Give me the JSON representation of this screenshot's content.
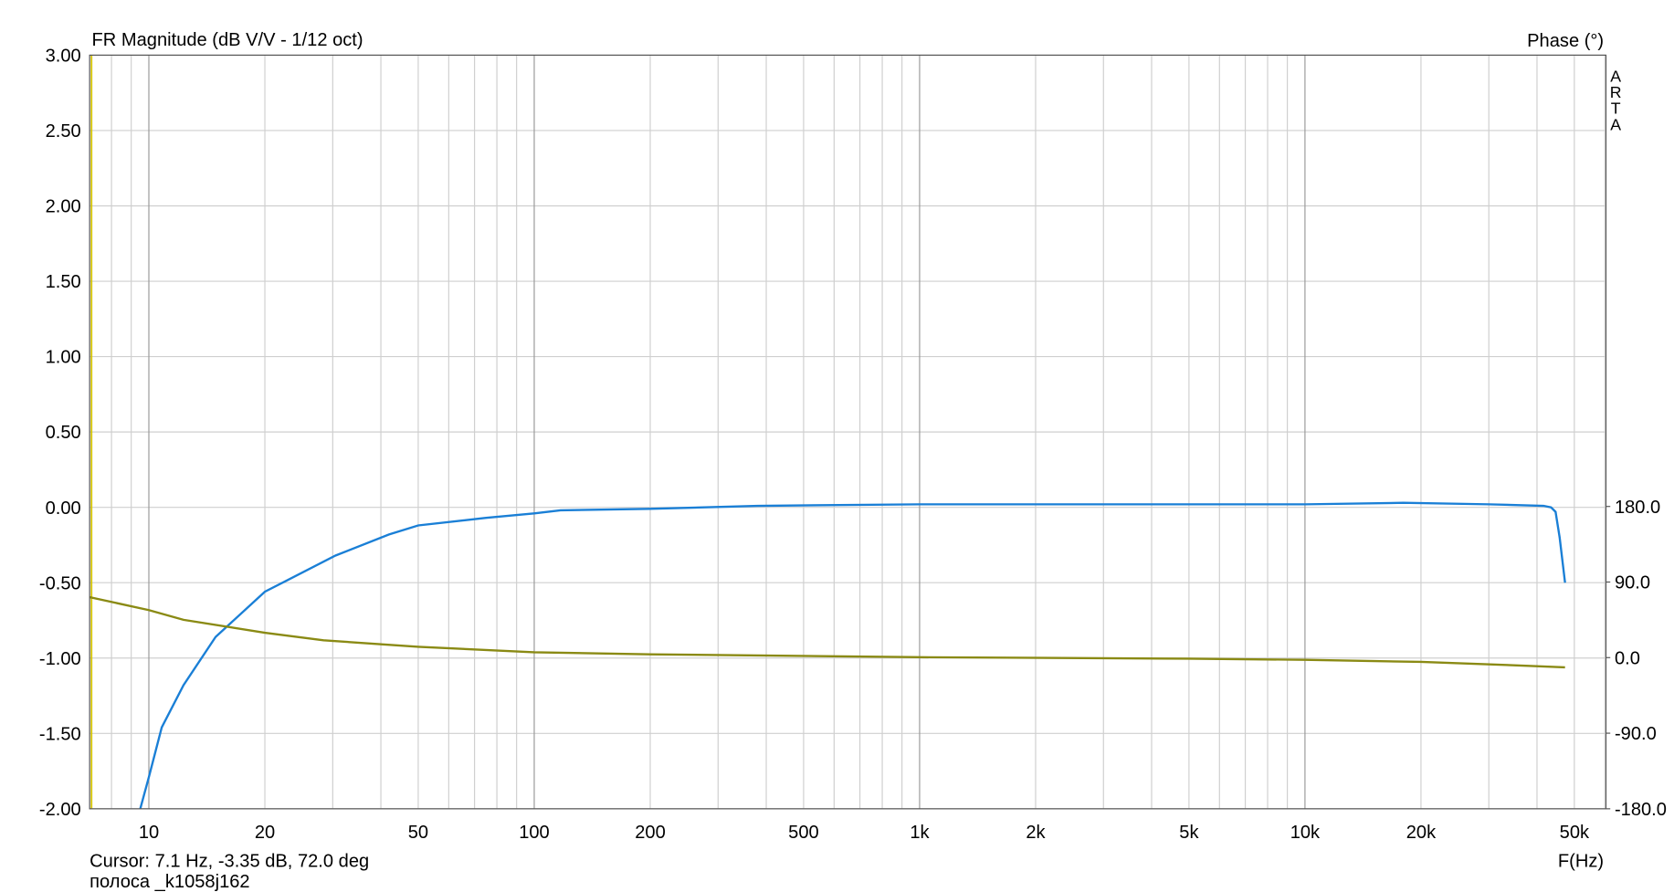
{
  "chart_data": {
    "type": "line",
    "title": "FR Magnitude (dB V/V - 1/12 oct)",
    "y2_label": "Phase (°)",
    "x_label": "F(Hz)",
    "watermark": "ARTA",
    "cursor_text": "Cursor: 7.1 Hz, -3.35 dB, 72.0 deg",
    "file_name": "полоса _k1058j162",
    "cursor_x": 7.1,
    "cursor_color": "#d4c400",
    "log_x": true,
    "grid": true,
    "xlim": [
      7.02,
      60400
    ],
    "xticks": [
      10,
      20,
      50,
      100,
      200,
      500,
      {
        "value": 1000,
        "label": "1k"
      },
      {
        "value": 2000,
        "label": "2k"
      },
      {
        "value": 5000,
        "label": "5k"
      },
      {
        "value": 10000,
        "label": "10k"
      },
      {
        "value": 20000,
        "label": "20k"
      },
      {
        "value": 50000,
        "label": "50k"
      }
    ],
    "x_minor_ticks": [
      8,
      9,
      30,
      40,
      60,
      70,
      80,
      90,
      300,
      400,
      600,
      700,
      800,
      900,
      3000,
      4000,
      6000,
      7000,
      8000,
      9000,
      30000,
      40000,
      60000
    ],
    "ylim": [
      -2,
      3
    ],
    "yticks": [
      {
        "value": 3,
        "label": "3.00"
      },
      {
        "value": 2.5,
        "label": "2.50"
      },
      {
        "value": 2,
        "label": "2.00"
      },
      {
        "value": 1.5,
        "label": "1.50"
      },
      {
        "value": 1,
        "label": "1.00"
      },
      {
        "value": 0.5,
        "label": "0.50"
      },
      {
        "value": 0,
        "label": "0.00"
      },
      {
        "value": -0.5,
        "label": "-0.50"
      },
      {
        "value": -1,
        "label": "-1.00"
      },
      {
        "value": -1.5,
        "label": "-1.50"
      },
      {
        "value": -2,
        "label": "-2.00"
      }
    ],
    "y2lim": [
      -180,
      717.4
    ],
    "y2ticks": [
      {
        "value": 180,
        "label": "180.0"
      },
      {
        "value": 90,
        "label": "90.0"
      },
      {
        "value": 0,
        "label": "0.0"
      },
      {
        "value": -90,
        "label": "-90.0"
      },
      {
        "value": -180,
        "label": "-180.0"
      }
    ],
    "series": [
      {
        "name": "Magnitude",
        "color": "#1a7fd6",
        "x": [
          9.5,
          10,
          10.8,
          12.3,
          14.9,
          20,
          30.5,
          42,
          50,
          75,
          100,
          117,
          200,
          380,
          1000,
          5000,
          10000,
          18000,
          30000,
          41600,
          43500,
          44700,
          45800,
          47300
        ],
        "values": [
          -2.0,
          -1.79,
          -1.46,
          -1.18,
          -0.86,
          -0.56,
          -0.32,
          -0.18,
          -0.12,
          -0.07,
          -0.04,
          -0.02,
          -0.01,
          0.01,
          0.02,
          0.02,
          0.02,
          0.03,
          0.02,
          0.01,
          0.0,
          -0.03,
          -0.2,
          -0.5
        ]
      },
      {
        "name": "Phase",
        "color": "#8a8a14",
        "axis": "y2",
        "x": [
          7.01,
          10,
          12.3,
          20,
          28.4,
          50,
          100,
          200,
          1000,
          5000,
          10000,
          20000,
          34300,
          47300
        ],
        "values": [
          72,
          56.6,
          45,
          29.6,
          20.6,
          12.9,
          6.4,
          3.9,
          0.5,
          -1.3,
          -2.6,
          -5.1,
          -9,
          -11.6
        ]
      }
    ]
  }
}
